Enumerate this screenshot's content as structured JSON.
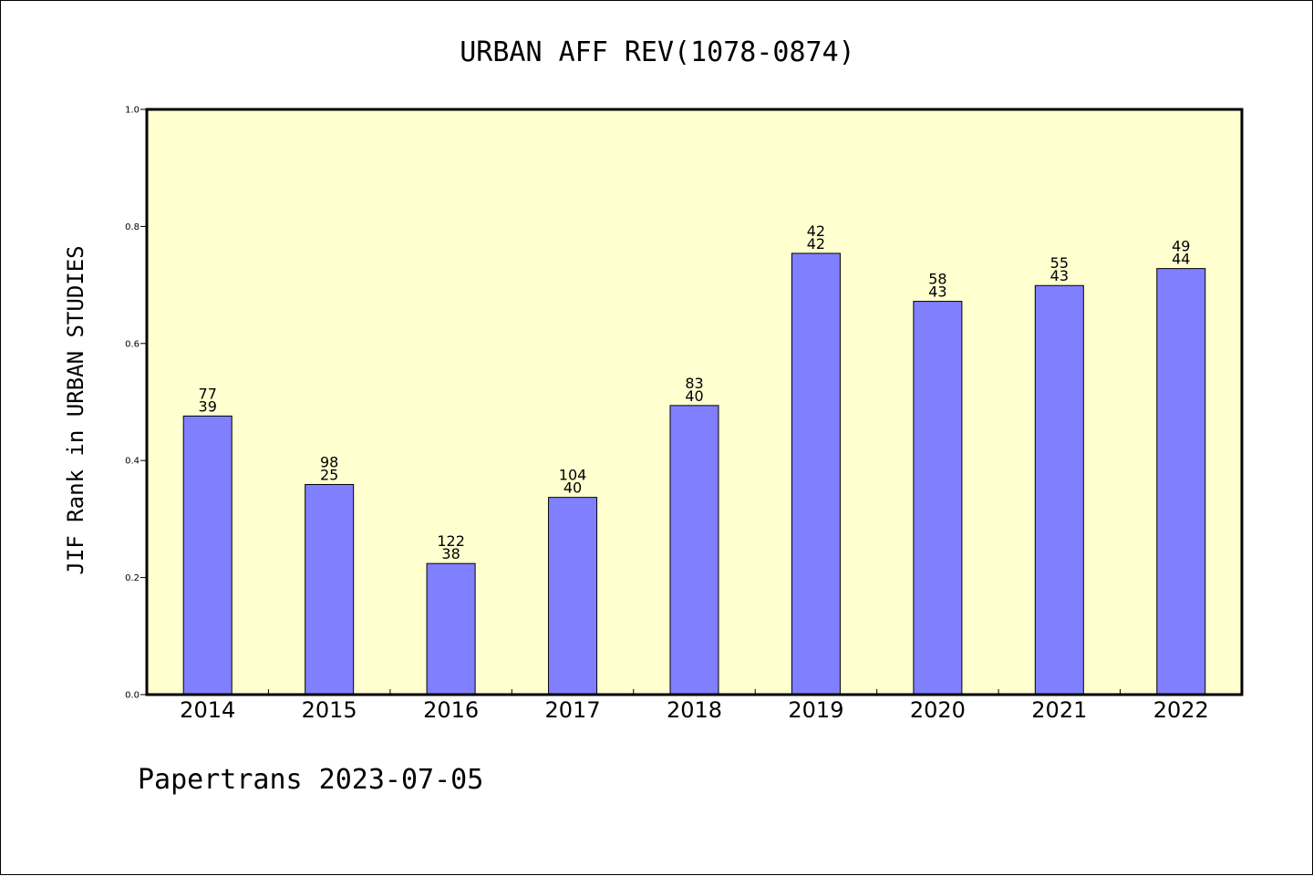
{
  "chart_data": {
    "type": "bar",
    "title": "URBAN AFF REV(1078-0874)",
    "ylabel": "JIF Rank in URBAN STUDIES",
    "xlabel": "",
    "ylim": [
      0,
      1.0
    ],
    "yticks": [
      "0.0",
      "0.2",
      "0.4",
      "0.6",
      "0.8",
      "1.0"
    ],
    "categories": [
      "2014",
      "2015",
      "2016",
      "2017",
      "2018",
      "2019",
      "2020",
      "2021",
      "2022"
    ],
    "values": [
      0.476,
      0.359,
      0.224,
      0.337,
      0.494,
      0.754,
      0.672,
      0.699,
      0.728
    ],
    "labels_top": [
      "77",
      "98",
      "122",
      "104",
      "83",
      "42",
      "58",
      "55",
      "49"
    ],
    "labels_bottom": [
      "39",
      "25",
      "38",
      "40",
      "40",
      "42",
      "43",
      "43",
      "44"
    ],
    "bar_color": "#8080ff",
    "plot_background": "#ffffd0",
    "grid": false,
    "legend": "none"
  },
  "footer": {
    "text": "Papertrans 2023-07-05"
  }
}
